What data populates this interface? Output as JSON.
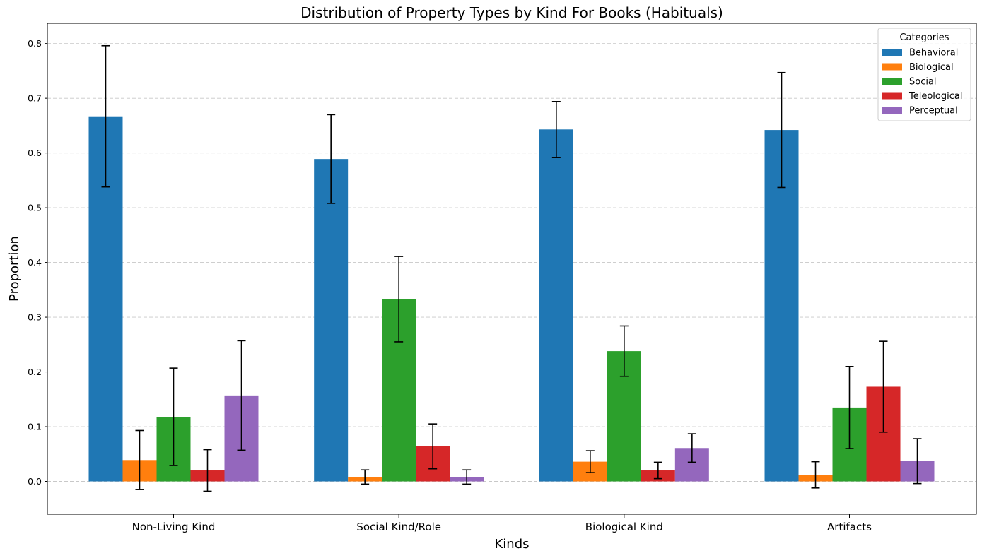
{
  "chart_data": {
    "type": "bar",
    "title": "Distribution of Property Types by Kind For Books (Habituals)",
    "xlabel": "Kinds",
    "ylabel": "Proportion",
    "categories": [
      "Non-Living Kind",
      "Social Kind/Role",
      "Biological Kind",
      "Artifacts"
    ],
    "ylim": [
      -0.06,
      0.837
    ],
    "yticks": [
      "0.0",
      "0.1",
      "0.2",
      "0.3",
      "0.4",
      "0.5",
      "0.6",
      "0.7",
      "0.8"
    ],
    "grid": "y-dashed",
    "legend": {
      "title": "Categories",
      "placement": "top-right"
    },
    "series": [
      {
        "name": "Behavioral",
        "color": "#1f77b4",
        "values": [
          0.667,
          0.589,
          0.643,
          0.642
        ],
        "errors": [
          0.129,
          0.081,
          0.051,
          0.105
        ]
      },
      {
        "name": "Biological",
        "color": "#ff7f0e",
        "values": [
          0.039,
          0.008,
          0.036,
          0.012
        ],
        "errors": [
          0.054,
          0.013,
          0.02,
          0.024
        ]
      },
      {
        "name": "Social",
        "color": "#2ca02c",
        "values": [
          0.118,
          0.333,
          0.238,
          0.135
        ],
        "errors": [
          0.089,
          0.078,
          0.046,
          0.075
        ]
      },
      {
        "name": "Teleological",
        "color": "#d62728",
        "values": [
          0.02,
          0.064,
          0.02,
          0.173
        ],
        "errors": [
          0.038,
          0.041,
          0.015,
          0.083
        ]
      },
      {
        "name": "Perceptual",
        "color": "#9467bd",
        "values": [
          0.157,
          0.008,
          0.061,
          0.037
        ],
        "errors": [
          0.1,
          0.013,
          0.026,
          0.041
        ]
      }
    ]
  }
}
